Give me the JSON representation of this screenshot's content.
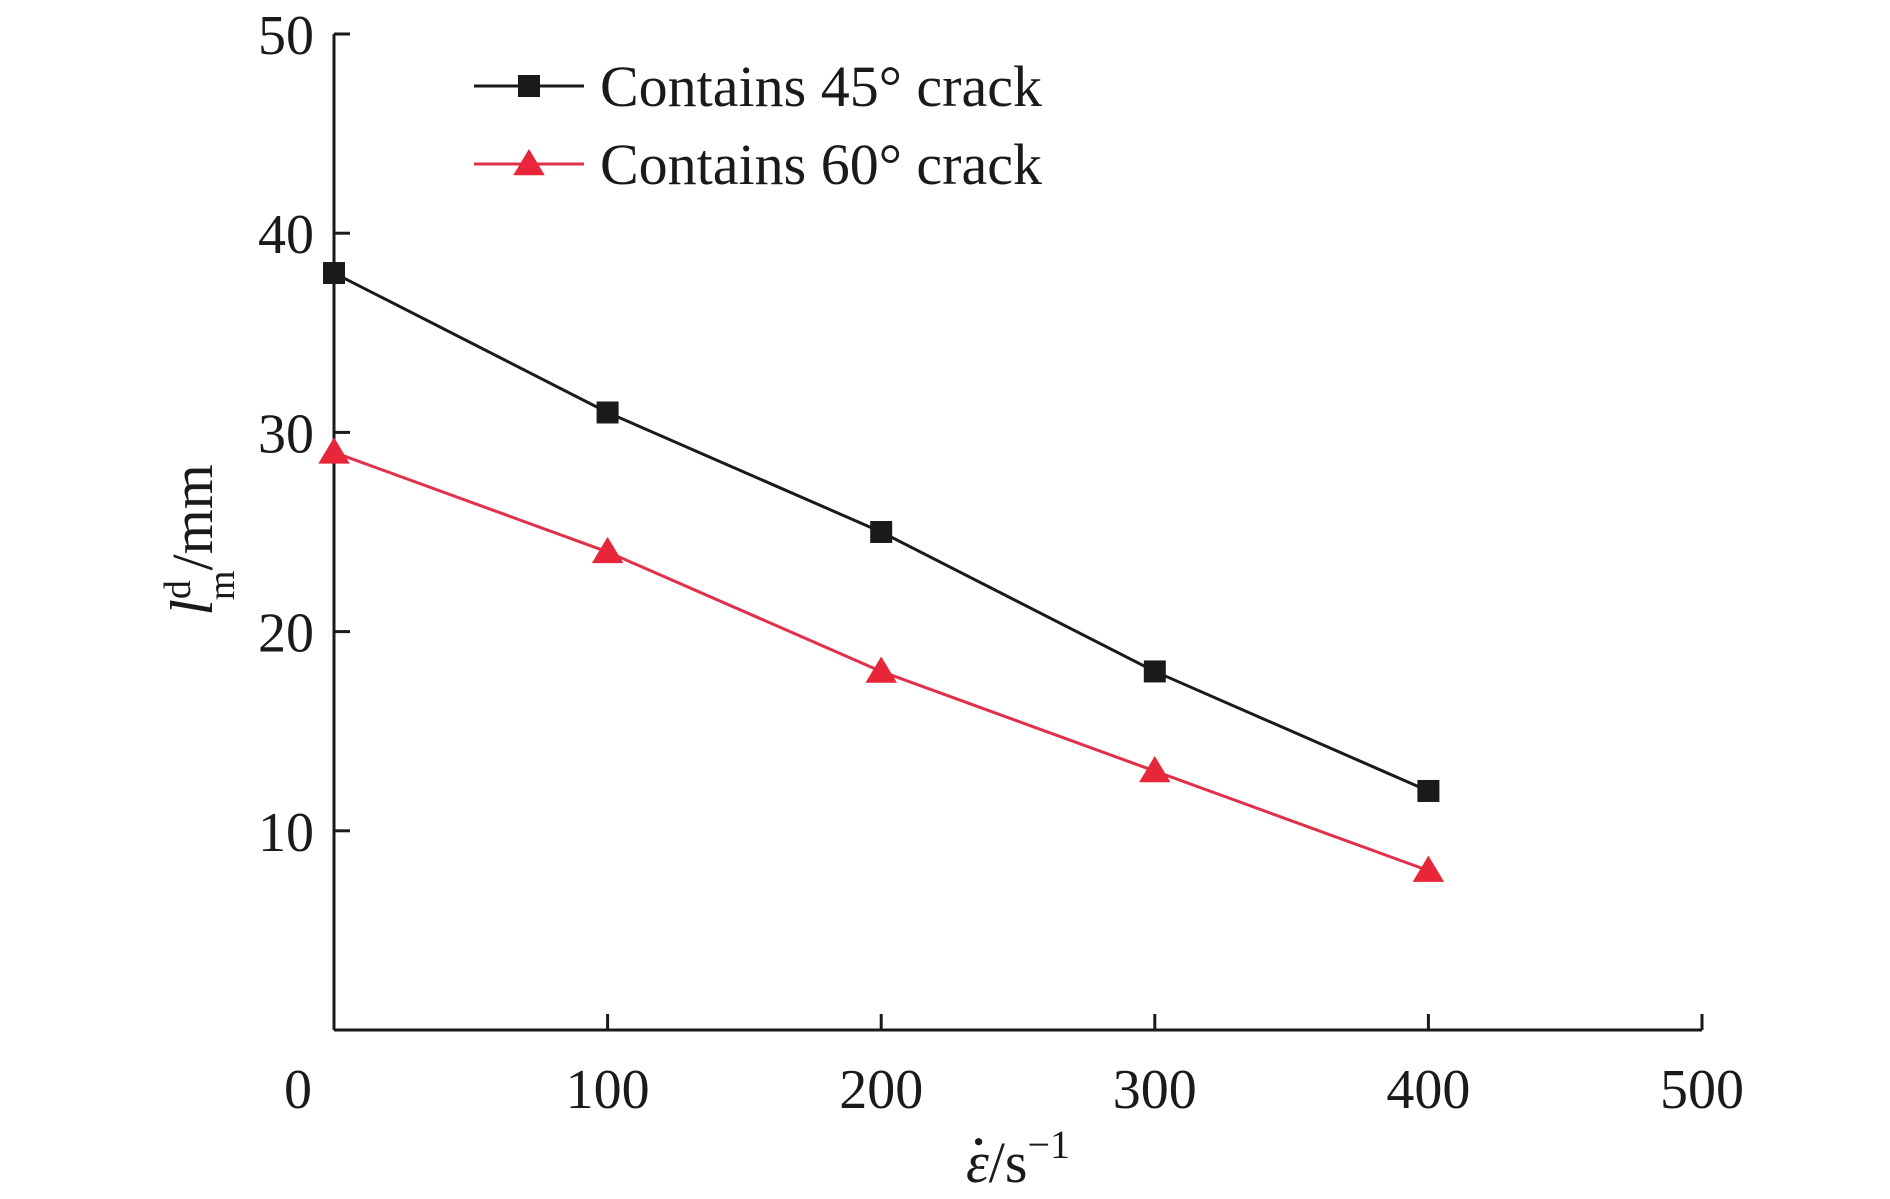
{
  "chart_data": {
    "type": "line",
    "xlabel": {
      "base": "ε",
      "sep": "/s",
      "sup": "−1"
    },
    "ylabel": {
      "base": "l",
      "sub": "m",
      "sup": "d",
      "unit": "/mm"
    },
    "xlim": [
      0,
      500
    ],
    "ylim": [
      0,
      50
    ],
    "x_ticks": [
      0,
      100,
      200,
      300,
      400,
      500
    ],
    "y_ticks": [
      10,
      20,
      30,
      40,
      50
    ],
    "grid": false,
    "legend_position": "top-left",
    "series": [
      {
        "name": "Contains 45° crack",
        "color": "#1a1a1a",
        "marker": "square",
        "points": [
          [
            0,
            38
          ],
          [
            100,
            31
          ],
          [
            200,
            25
          ],
          [
            300,
            18
          ],
          [
            400,
            12
          ]
        ]
      },
      {
        "name": "Contains 60° crack",
        "color": "#e0304a",
        "marker_color": "#e8263a",
        "marker": "triangle",
        "points": [
          [
            0,
            29
          ],
          [
            100,
            24
          ],
          [
            200,
            18
          ],
          [
            300,
            13
          ],
          [
            400,
            8
          ]
        ]
      }
    ]
  }
}
